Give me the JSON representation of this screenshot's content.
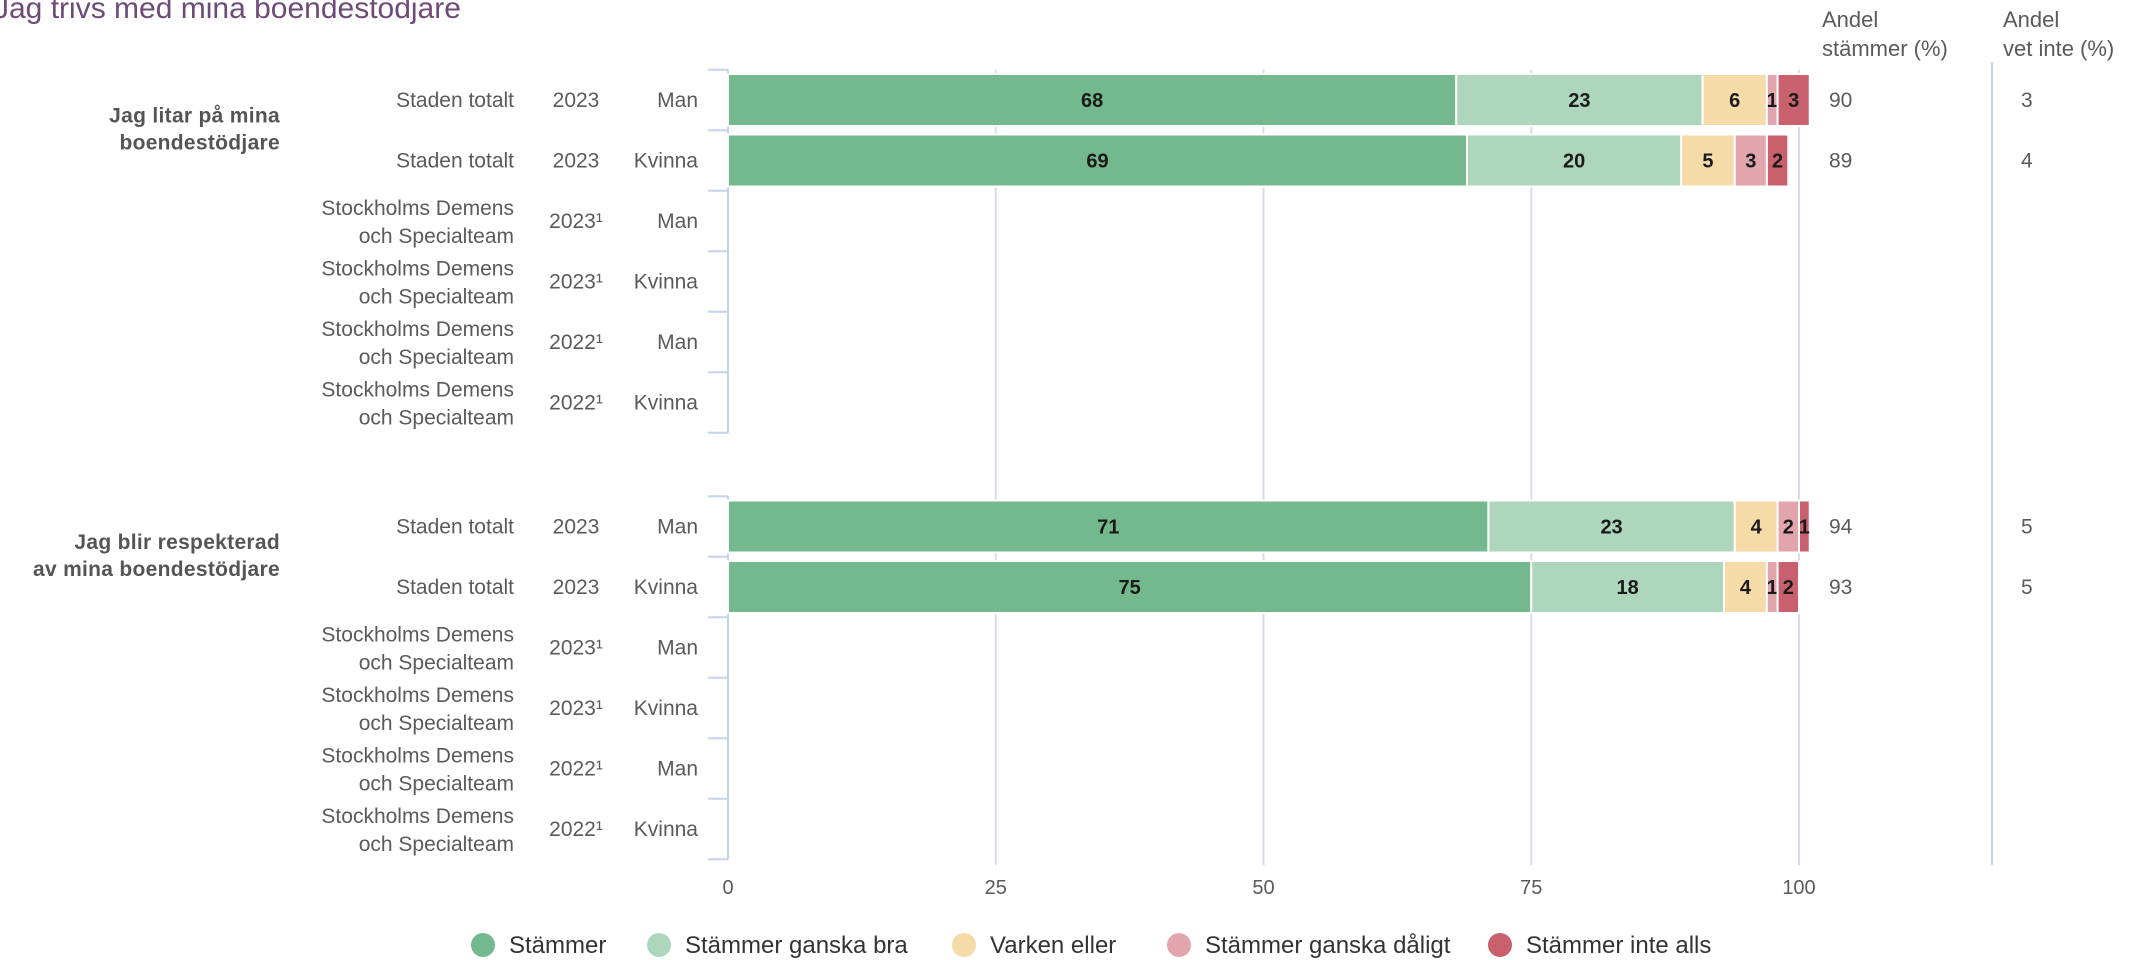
{
  "title": "Jag trivs med mina boendestödjare",
  "columns": {
    "share_agree": [
      "Andel",
      "stämmer (%)"
    ],
    "share_dont_know": [
      "Andel",
      "vet inte (%)"
    ]
  },
  "colors": {
    "title": "#6e4a78",
    "text": "#5a5a5a",
    "group_label": "#555555",
    "axis": "#c5d3ea",
    "grid": "#d6dde8",
    "segment_label": "#1a1a1a"
  },
  "chart_data": {
    "type": "bar",
    "orientation": "horizontal",
    "stacked": true,
    "xlim": [
      0,
      100
    ],
    "x_ticks": [
      0,
      25,
      50,
      75,
      100
    ],
    "grid": true,
    "legend_position": "bottom",
    "series": [
      {
        "name": "Stämmer",
        "color": "#74b98e"
      },
      {
        "name": "Stämmer ganska bra",
        "color": "#add6bc"
      },
      {
        "name": "Varken eller",
        "color": "#f4dba8"
      },
      {
        "name": "Stämmer ganska dåligt",
        "color": "#e3a5ad"
      },
      {
        "name": "Stämmer inte alls",
        "color": "#c9606d"
      }
    ],
    "groups": [
      {
        "label": [
          "Jag litar på mina",
          "boendestödjare"
        ],
        "rows": [
          {
            "unit": [
              "Staden totalt"
            ],
            "year": "2023",
            "gender": "Man",
            "values": [
              68,
              23,
              6,
              1,
              3
            ],
            "share_agree": "90",
            "share_dont_know": "3"
          },
          {
            "unit": [
              "Staden totalt"
            ],
            "year": "2023",
            "gender": "Kvinna",
            "values": [
              69,
              20,
              5,
              3,
              2
            ],
            "share_agree": "89",
            "share_dont_know": "4"
          },
          {
            "unit": [
              "Stockholms Demens",
              "och Specialteam"
            ],
            "year": "2023¹",
            "gender": "Man",
            "values": null,
            "share_agree": "",
            "share_dont_know": ""
          },
          {
            "unit": [
              "Stockholms Demens",
              "och Specialteam"
            ],
            "year": "2023¹",
            "gender": "Kvinna",
            "values": null,
            "share_agree": "",
            "share_dont_know": ""
          },
          {
            "unit": [
              "Stockholms Demens",
              "och Specialteam"
            ],
            "year": "2022¹",
            "gender": "Man",
            "values": null,
            "share_agree": "",
            "share_dont_know": ""
          },
          {
            "unit": [
              "Stockholms Demens",
              "och Specialteam"
            ],
            "year": "2022¹",
            "gender": "Kvinna",
            "values": null,
            "share_agree": "",
            "share_dont_know": ""
          }
        ]
      },
      {
        "label": [
          "Jag blir respekterad",
          "av mina boendestödjare"
        ],
        "rows": [
          {
            "unit": [
              "Staden totalt"
            ],
            "year": "2023",
            "gender": "Man",
            "values": [
              71,
              23,
              4,
              2,
              1
            ],
            "share_agree": "94",
            "share_dont_know": "5"
          },
          {
            "unit": [
              "Staden totalt"
            ],
            "year": "2023",
            "gender": "Kvinna",
            "values": [
              75,
              18,
              4,
              1,
              2
            ],
            "share_agree": "93",
            "share_dont_know": "5"
          },
          {
            "unit": [
              "Stockholms Demens",
              "och Specialteam"
            ],
            "year": "2023¹",
            "gender": "Man",
            "values": null,
            "share_agree": "",
            "share_dont_know": ""
          },
          {
            "unit": [
              "Stockholms Demens",
              "och Specialteam"
            ],
            "year": "2023¹",
            "gender": "Kvinna",
            "values": null,
            "share_agree": "",
            "share_dont_know": ""
          },
          {
            "unit": [
              "Stockholms Demens",
              "och Specialteam"
            ],
            "year": "2022¹",
            "gender": "Man",
            "values": null,
            "share_agree": "",
            "share_dont_know": ""
          },
          {
            "unit": [
              "Stockholms Demens",
              "och Specialteam"
            ],
            "year": "2022¹",
            "gender": "Kvinna",
            "values": null,
            "share_agree": "",
            "share_dont_know": ""
          }
        ]
      }
    ]
  }
}
